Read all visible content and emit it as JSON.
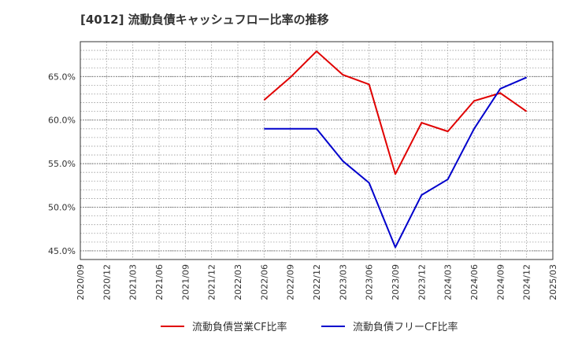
{
  "chart_data": {
    "type": "line",
    "title": "[4012]  流動負債キャッシュフロー比率の推移",
    "xlabel": "",
    "ylabel": "",
    "x": [
      "2020/09",
      "2020/12",
      "2021/03",
      "2021/06",
      "2021/09",
      "2021/12",
      "2022/03",
      "2022/06",
      "2022/09",
      "2022/12",
      "2023/03",
      "2023/06",
      "2023/09",
      "2023/12",
      "2024/03",
      "2024/06",
      "2024/09",
      "2024/12",
      "2025/03"
    ],
    "ylim": [
      44,
      69
    ],
    "yticks": [
      45,
      50,
      55,
      60,
      65
    ],
    "ytick_labels": [
      "45.0%",
      "50.0%",
      "55.0%",
      "60.0%",
      "65.0%"
    ],
    "grid": true,
    "legend_position": "bottom",
    "series": [
      {
        "name": "流動負債営業CF比率",
        "color": "#e00000",
        "values": [
          null,
          null,
          null,
          null,
          null,
          null,
          null,
          62.3,
          64.9,
          67.9,
          65.2,
          64.1,
          53.8,
          59.7,
          58.7,
          62.2,
          63.1,
          61.0,
          null
        ]
      },
      {
        "name": "流動負債フリーCF比率",
        "color": "#0000cc",
        "values": [
          null,
          null,
          null,
          null,
          null,
          null,
          null,
          59.0,
          59.0,
          59.0,
          55.3,
          52.8,
          45.4,
          51.4,
          53.2,
          59.0,
          63.6,
          64.9,
          null
        ]
      }
    ]
  }
}
